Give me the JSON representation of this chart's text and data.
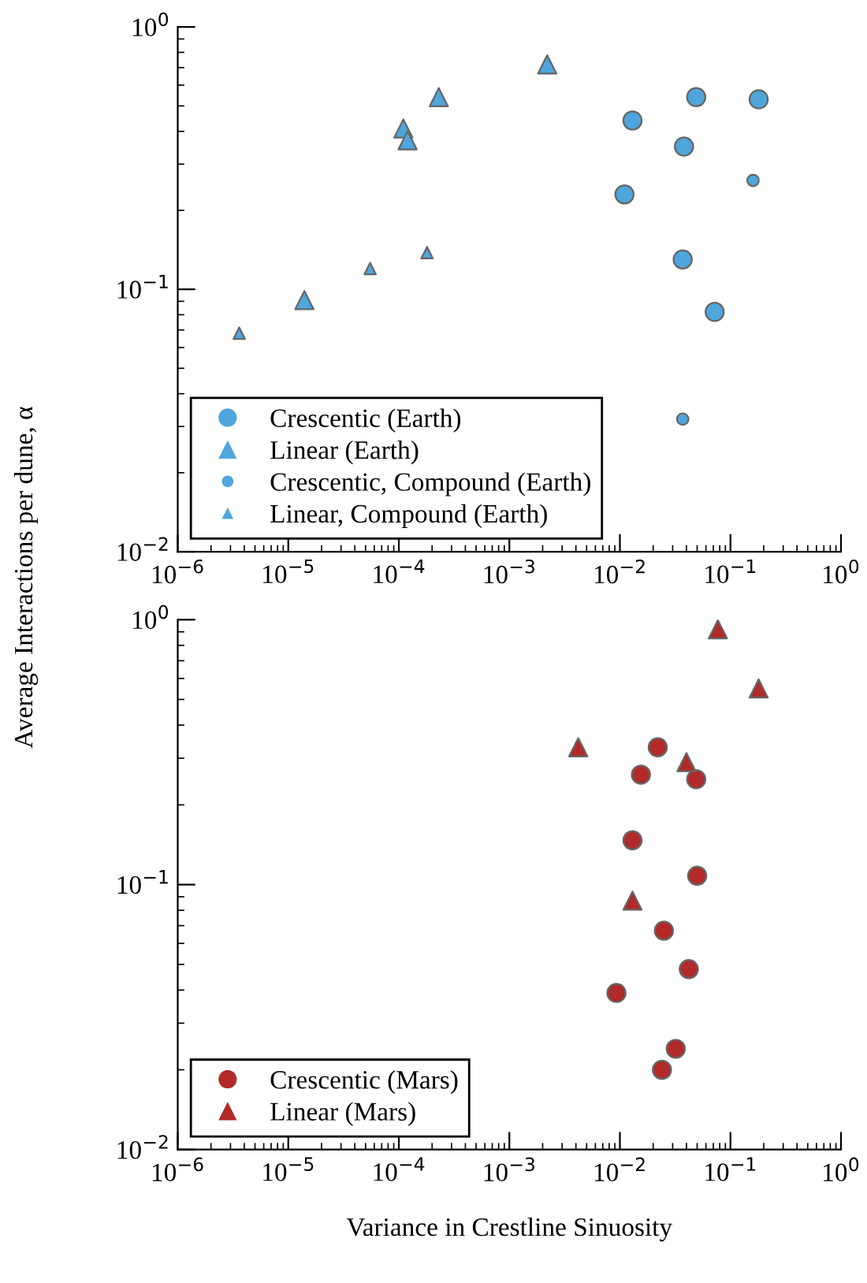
{
  "chart_data": [
    {
      "type": "scatter",
      "ylabel": "Average Interactions per dune, α",
      "log": "xy",
      "legend": "bottom left",
      "xlim": [
        1e-06,
        1
      ],
      "ylim": [
        0.01,
        1
      ],
      "xticks": [
        {
          "value": 1e-06,
          "label": "10$^{−6}$"
        },
        {
          "value": 1e-05,
          "label": "10$^{−5}$"
        },
        {
          "value": 0.0001,
          "label": "10$^{−4}$"
        },
        {
          "value": 0.001,
          "label": "10$^{−3}$"
        },
        {
          "value": 0.01,
          "label": "10$^{−2}$"
        },
        {
          "value": 0.1,
          "label": "10$^{−1}$"
        },
        {
          "value": 1,
          "label": "10$^{0}$"
        }
      ],
      "yticks": [
        {
          "value": 0.01,
          "label": "10$^{−2}$"
        },
        {
          "value": 0.1,
          "label": "10$^{−1}$"
        },
        {
          "value": 1,
          "label": "10$^{0}$"
        }
      ],
      "series": [
        {
          "name": "Crescentic (Earth)",
          "color": "#4ea6dc",
          "marker": "circle",
          "x": [
            0.013,
            0.049,
            0.18,
            0.011,
            0.038,
            0.037,
            0.072
          ],
          "values": [
            0.44,
            0.54,
            0.53,
            0.23,
            0.35,
            0.13,
            0.082
          ]
        },
        {
          "name": "Linear (Earth)",
          "color": "#4ea6dc",
          "marker": "triangle",
          "x": [
            0.0022,
            0.00023,
            0.00011,
            0.00012,
            1.4e-05
          ],
          "values": [
            0.72,
            0.54,
            0.41,
            0.37,
            0.091
          ]
        },
        {
          "name": "Crescentic, Compound (Earth)",
          "color": "#4ea6dc",
          "marker": "circle",
          "x": [
            0.16,
            0.037
          ],
          "values": [
            0.26,
            0.032
          ]
        },
        {
          "name": "Linear, Compound (Earth)",
          "color": "#4ea6dc",
          "marker": "triangle",
          "x": [
            3.6e-06,
            5.5e-05,
            0.00018
          ],
          "values": [
            0.068,
            0.12,
            0.138
          ]
        }
      ]
    },
    {
      "type": "scatter",
      "xlabel": "Variance in Crestline Sinuosity",
      "log": "xy",
      "legend": "bottom left",
      "xlim": [
        1e-06,
        1
      ],
      "ylim": [
        0.01,
        1
      ],
      "xticks": [
        {
          "value": 1e-06,
          "label": "10$^{−6}$"
        },
        {
          "value": 1e-05,
          "label": "10$^{−5}$"
        },
        {
          "value": 0.0001,
          "label": "10$^{−4}$"
        },
        {
          "value": 0.001,
          "label": "10$^{−3}$"
        },
        {
          "value": 0.01,
          "label": "10$^{−2}$"
        },
        {
          "value": 0.1,
          "label": "10$^{−1}$"
        },
        {
          "value": 1,
          "label": "10$^{0}$"
        }
      ],
      "yticks": [
        {
          "value": 0.01,
          "label": "10$^{−2}$"
        },
        {
          "value": 0.1,
          "label": "10$^{−1}$"
        },
        {
          "value": 1,
          "label": "10$^{0}$"
        }
      ],
      "series": [
        {
          "name": "Crescentic (Mars)",
          "color": "#b22a2a",
          "marker": "circle",
          "x": [
            0.022,
            0.0155,
            0.049,
            0.013,
            0.05,
            0.025,
            0.042,
            0.0093,
            0.032,
            0.024
          ],
          "values": [
            0.33,
            0.26,
            0.25,
            0.147,
            0.108,
            0.067,
            0.048,
            0.039,
            0.024,
            0.02
          ]
        },
        {
          "name": "Linear (Mars)",
          "color": "#b22a2a",
          "marker": "triangle",
          "x": [
            0.077,
            0.18,
            0.0042,
            0.04,
            0.013
          ],
          "values": [
            0.92,
            0.55,
            0.33,
            0.29,
            0.087
          ]
        }
      ]
    }
  ]
}
